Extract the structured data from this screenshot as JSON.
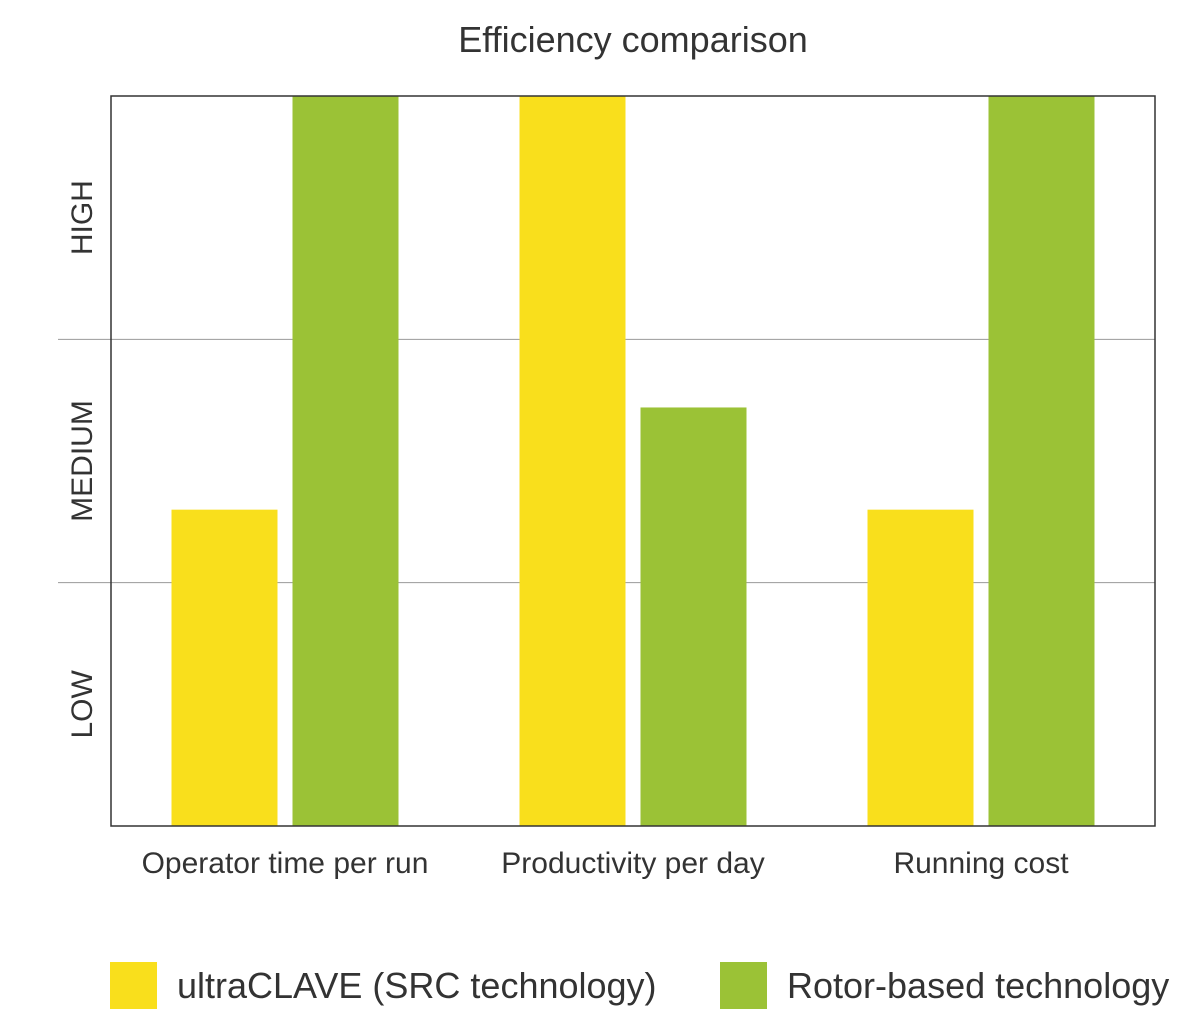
{
  "chart_data": {
    "type": "bar",
    "title": "Efficiency comparison",
    "xlabel": "",
    "ylabel": "",
    "categories": [
      "Operator time per run",
      "Productivity per day",
      "Running cost"
    ],
    "y_levels": [
      "LOW",
      "MEDIUM",
      "HIGH"
    ],
    "ylim": [
      0,
      3
    ],
    "grid": true,
    "legend_position": "bottom",
    "series": [
      {
        "name": "ultraCLAVE (SRC technology)",
        "color": "#f9df1c",
        "values": [
          1.3,
          3.0,
          1.3
        ]
      },
      {
        "name": "Rotor-based technology",
        "color": "#9bc236",
        "values": [
          3.0,
          1.72,
          3.0
        ]
      }
    ]
  }
}
